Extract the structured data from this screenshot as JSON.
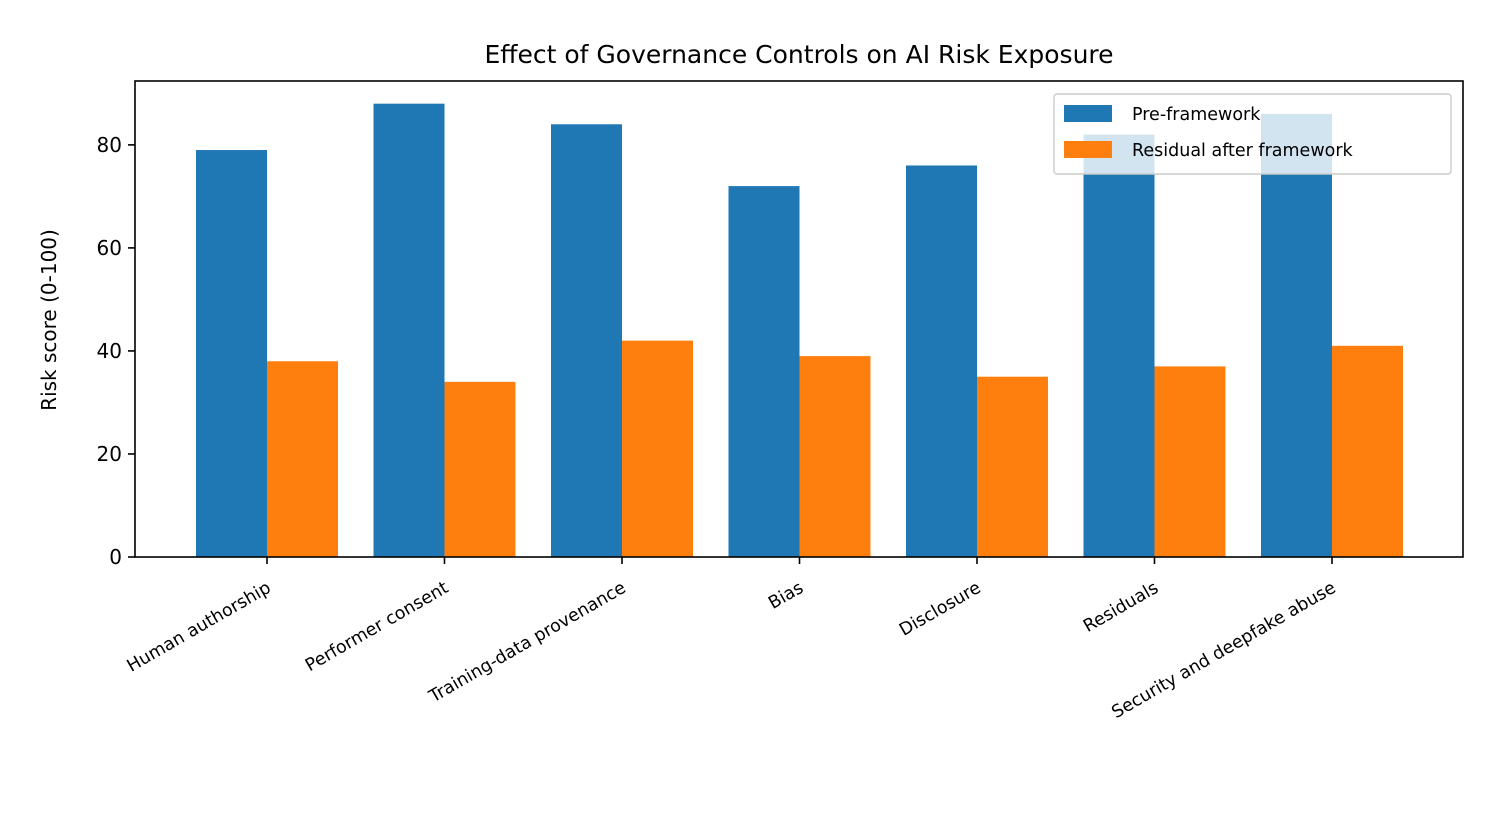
{
  "chart_data": {
    "type": "bar",
    "title": "Effect of Governance Controls on AI Risk Exposure",
    "xlabel": "",
    "ylabel": "Risk score (0-100)",
    "ylim": [
      0,
      92.4
    ],
    "yticks": [
      0,
      20,
      40,
      60,
      80
    ],
    "grid": false,
    "legend_position": "top-right",
    "categories": [
      "Human authorship",
      "Performer consent",
      "Training-data provenance",
      "Bias",
      "Disclosure",
      "Residuals",
      "Security and deepfake abuse"
    ],
    "series": [
      {
        "name": "Pre-framework",
        "color": "#1f77b4",
        "values": [
          79,
          88,
          84,
          72,
          76,
          82,
          86
        ]
      },
      {
        "name": "Residual after framework",
        "color": "#ff7f0e",
        "values": [
          38,
          34,
          42,
          39,
          35,
          37,
          41
        ]
      }
    ]
  }
}
